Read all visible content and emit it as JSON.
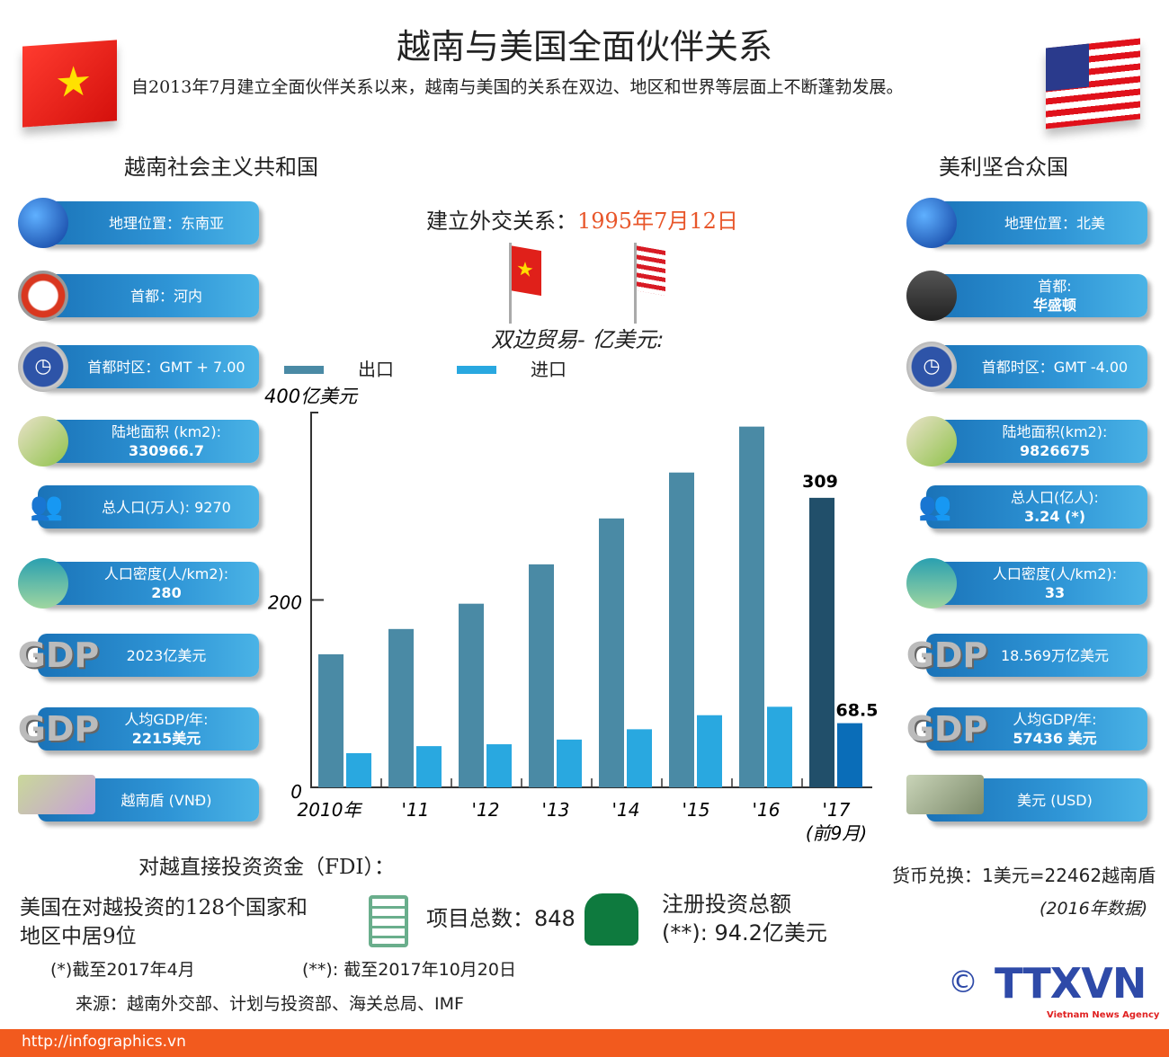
{
  "title": "越南与美国全面伙伴关系",
  "subtitle": "自2013年7月建立全面伙伴关系以来，越南与美国的关系在双边、地区和世界等层面上不断蓬勃发展。",
  "vietnam": {
    "name": "越南社会主义共和国",
    "items": [
      {
        "icon": "globe-icon",
        "l1": "地理位置：东南亚",
        "l2": ""
      },
      {
        "icon": "hanoi-emblem-icon",
        "l1": "首都：河内",
        "l2": ""
      },
      {
        "icon": "clock-icon",
        "l1": "首都时区：GMT + 7.00",
        "l2": ""
      },
      {
        "icon": "map-pencil-icon",
        "l1": "陆地面积 (km2):",
        "l2": "330966.7"
      },
      {
        "icon": "people-icon",
        "l1": "总人口(万人): 9270",
        "l2": ""
      },
      {
        "icon": "person-area-icon",
        "l1": "人口密度(人/km2):",
        "l2": "280"
      },
      {
        "icon": "gdp-icon",
        "l1": "2023亿美元",
        "l2": ""
      },
      {
        "icon": "gdp-person-icon",
        "l1": "人均GDP/年:",
        "l2": "2215美元"
      },
      {
        "icon": "banknote-icon",
        "l1": "越南盾 (VNĐ)",
        "l2": ""
      }
    ]
  },
  "usa": {
    "name": "美利坚合众国",
    "items": [
      {
        "icon": "globe-icon",
        "l1": "地理位置：北美",
        "l2": ""
      },
      {
        "icon": "capitol-icon",
        "l1": "首都:",
        "l2": "华盛顿"
      },
      {
        "icon": "clock-icon",
        "l1": "首都时区：GMT -4.00",
        "l2": ""
      },
      {
        "icon": "map-pencil-icon",
        "l1": "陆地面积(km2):",
        "l2": "9826675"
      },
      {
        "icon": "people-icon",
        "l1": "总人口(亿人):",
        "l2": "3.24 (*)"
      },
      {
        "icon": "person-area-icon",
        "l1": "人口密度(人/km2):",
        "l2": "33"
      },
      {
        "icon": "gdp-icon",
        "l1": "18.569万亿美元",
        "l2": ""
      },
      {
        "icon": "gdp-person-icon",
        "l1": "人均GDP/年:",
        "l2": "57436 美元"
      },
      {
        "icon": "dollar-note-icon",
        "l1": "美元 (USD)",
        "l2": ""
      }
    ]
  },
  "diplomatic": {
    "label": "建立外交关系：",
    "date": "1995年7月12日",
    "accent": "#e8562a"
  },
  "chart_data": {
    "type": "bar",
    "title": "双边贸易- 亿美元:",
    "ylabel": "400亿美元",
    "ylim": [
      0,
      400
    ],
    "yticks": [
      "0",
      "200"
    ],
    "categories": [
      "2010年",
      "'11",
      "'12",
      "'13",
      "'14",
      "'15",
      "'16",
      "'17"
    ],
    "category_note": "(前9月)",
    "series": [
      {
        "name": "出口",
        "color": "#4a8aa5",
        "highlight": "#214f6a",
        "values": [
          142,
          169,
          196,
          238,
          287,
          336,
          385,
          309
        ]
      },
      {
        "name": "进口",
        "color": "#29a8e0",
        "highlight": "#0a6db8",
        "values": [
          36.5,
          44,
          46,
          51,
          62,
          77,
          86,
          68.5
        ]
      }
    ],
    "data_labels": [
      "309",
      "68.5"
    ]
  },
  "fdi": {
    "title": "对越直接投资资金（FDI）：",
    "rank_l1": "美国在对越投资的128个国家和",
    "rank_l2": "地区中居9位",
    "projects": "项目总数：848",
    "capital_l1": "注册投资总额",
    "capital_l2": "(**): 94.2亿美元"
  },
  "exchange": {
    "text": "货币兑换：1美元=22462越南盾",
    "note": "(2016年数据)"
  },
  "notes": {
    "n1": "(*)截至2017年4月",
    "n2": "(**): 截至2017年10月20日",
    "source": "来源：越南外交部、计划与投资部、海关总局、IMF"
  },
  "logo": {
    "copyright": "©",
    "name": "TTXVN",
    "tagline": "Vietnam News Agency"
  },
  "footer": {
    "url": "http://infographics.vn"
  }
}
